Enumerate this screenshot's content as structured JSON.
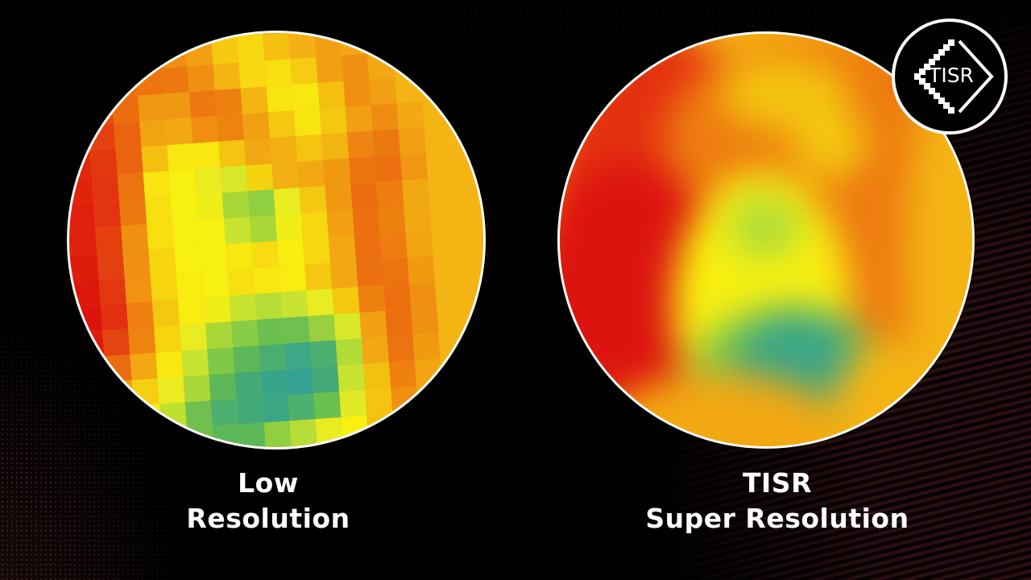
{
  "labels": {
    "left_line1": "Low",
    "left_line2": "Resolution",
    "right_line1": "TISR",
    "right_line2": "Super Resolution"
  },
  "logo": {
    "text": "TISR",
    "icon": "pixelated-diamond-arrow-icon"
  },
  "colors": {
    "background": "#000000",
    "circle_border": "#ffffff",
    "heat_red": "#e01c0c",
    "heat_orange": "#ee7c10",
    "heat_amber": "#f4b414",
    "heat_yellow": "#f8f010",
    "heat_lime": "#c8e830",
    "heat_green": "#6cc050",
    "heat_teal": "#30a090"
  },
  "lowres_grid": [
    [
      "#e85a10",
      "#e86010",
      "#ea6c10",
      "#ee8010",
      "#f08a12",
      "#f2a012",
      "#f0a812",
      "#f4c010",
      "#f6d010",
      "#f4b414",
      "#f2a814",
      "#f0a012",
      "#f0a012",
      "#f2b014",
      "#f4b414",
      "#f4b414",
      "#f4b414",
      "#f4b414"
    ],
    [
      "#e44810",
      "#e65210",
      "#ea6a10",
      "#ee7a12",
      "#ee7010",
      "#f09012",
      "#f2a012",
      "#f6c810",
      "#f8d810",
      "#f6c010",
      "#f4b014",
      "#f2a012",
      "#f2a814",
      "#f4b414",
      "#f4b414",
      "#f4b414",
      "#f4b414",
      "#f4b414"
    ],
    [
      "#e23810",
      "#e43e10",
      "#e85a10",
      "#ec7010",
      "#ee7410",
      "#ee7810",
      "#f09012",
      "#f4b412",
      "#f8d810",
      "#f8e010",
      "#f6cc10",
      "#f2a012",
      "#f09012",
      "#f2a814",
      "#f4b414",
      "#f4b414",
      "#f4b414",
      "#f4b414"
    ],
    [
      "#e22e0e",
      "#e2340e",
      "#e64e10",
      "#ec6c10",
      "#f09612",
      "#f09812",
      "#ee7810",
      "#ee8010",
      "#f4b412",
      "#f8e410",
      "#f8e810",
      "#f4c010",
      "#f09012",
      "#f0a012",
      "#f4b414",
      "#f4b414",
      "#f4b414",
      "#f4b414"
    ],
    [
      "#e0280c",
      "#e22c0e",
      "#e44010",
      "#ea6410",
      "#f0a412",
      "#f2a812",
      "#f08e12",
      "#ee8410",
      "#f0a012",
      "#f4c810",
      "#f8e410",
      "#f4c810",
      "#f0a012",
      "#ee8c12",
      "#f2a814",
      "#f4b414",
      "#f4b414",
      "#f4b414"
    ],
    [
      "#e0240c",
      "#e0280c",
      "#e23810",
      "#ea6410",
      "#f4c010",
      "#f8e810",
      "#f8e810",
      "#f4c410",
      "#f2a812",
      "#f2b012",
      "#f4c410",
      "#f2b412",
      "#ee8412",
      "#ec7810",
      "#f0a012",
      "#f4b414",
      "#f4b414",
      "#f4b414"
    ],
    [
      "#e0200c",
      "#e0240c",
      "#e23410",
      "#ec7410",
      "#f8e410",
      "#f8f010",
      "#e8ec20",
      "#d8e828",
      "#f4d410",
      "#f2b012",
      "#f2a812",
      "#f09812",
      "#ec7410",
      "#ec7010",
      "#f09612",
      "#f4b414",
      "#f4b414",
      "#f4b414"
    ],
    [
      "#de1c0c",
      "#e0200c",
      "#e23410",
      "#ec7810",
      "#f6e010",
      "#f8f010",
      "#f0ee18",
      "#a8d838",
      "#90d040",
      "#e8ec20",
      "#f4c810",
      "#f09812",
      "#ec6c10",
      "#ee7c10",
      "#f2a812",
      "#f4b414",
      "#f4b414",
      "#f4b414"
    ],
    [
      "#de1c0c",
      "#e0200c",
      "#e4400e",
      "#f09012",
      "#f8e010",
      "#f8f010",
      "#f8f010",
      "#c8e430",
      "#a8d838",
      "#f0ee18",
      "#f6d810",
      "#f2a012",
      "#ec7010",
      "#ee8010",
      "#f2a812",
      "#f4b414",
      "#f4b414",
      "#f4b414"
    ],
    [
      "#dc180c",
      "#de1c0c",
      "#e24010",
      "#f09012",
      "#f6d410",
      "#f8f010",
      "#f8f010",
      "#f8e810",
      "#f6dc10",
      "#f8ec10",
      "#f6d810",
      "#f2a812",
      "#ec7010",
      "#ee7c10",
      "#f2a412",
      "#f4b414",
      "#f4b414",
      "#f4b414"
    ],
    [
      "#dc140c",
      "#dc180c",
      "#e23810",
      "#f09212",
      "#f6d410",
      "#f8ec10",
      "#f8f010",
      "#f8e010",
      "#f8e810",
      "#f8ec10",
      "#f4c810",
      "#f2a812",
      "#ec7010",
      "#ec7410",
      "#f09a12",
      "#f4b414",
      "#f4b414",
      "#f4b414"
    ],
    [
      "#da120c",
      "#dc140c",
      "#e23010",
      "#ee8010",
      "#f4c810",
      "#f8ec10",
      "#f0ee18",
      "#c8e430",
      "#b8dc38",
      "#c8e430",
      "#e8ec20",
      "#f4c810",
      "#ee8010",
      "#ec7010",
      "#f09012",
      "#f4b414",
      "#f4b414",
      "#f4b414"
    ],
    [
      "#dc180c",
      "#de1c0c",
      "#e44410",
      "#ee8410",
      "#f6d410",
      "#e8ec20",
      "#a8d838",
      "#88cc48",
      "#6cc050",
      "#70c050",
      "#98d040",
      "#d8e828",
      "#f0a012",
      "#ec7010",
      "#f09012",
      "#f4b414",
      "#f4b414",
      "#f4b414"
    ],
    [
      "#e0300e",
      "#e24010",
      "#ea6c10",
      "#f2a812",
      "#f8e810",
      "#c8e430",
      "#80c848",
      "#5cb858",
      "#4aae70",
      "#3ca888",
      "#4cb070",
      "#b0dc38",
      "#f2a812",
      "#ec7410",
      "#f09a12",
      "#f4b414",
      "#f4b414",
      "#f4b414"
    ],
    [
      "#e65210",
      "#ec7410",
      "#f0a012",
      "#f6d010",
      "#e8ec20",
      "#a8d838",
      "#5cb858",
      "#42aa78",
      "#38a488",
      "#34a290",
      "#42aa78",
      "#c8e430",
      "#f4c010",
      "#ee8010",
      "#f2a412",
      "#f4b414",
      "#f4b414",
      "#f4b414"
    ],
    [
      "#ee8010",
      "#f2a012",
      "#f4c010",
      "#f0ee18",
      "#c0e030",
      "#70c050",
      "#4cb070",
      "#42aa78",
      "#3aa684",
      "#4cb070",
      "#6cc050",
      "#e0ea28",
      "#f4c410",
      "#f09012",
      "#f2a812",
      "#f4b414",
      "#f4b414",
      "#f4b414"
    ],
    [
      "#f2a812",
      "#f4c010",
      "#f4d410",
      "#e8ec20",
      "#a8d838",
      "#70c050",
      "#5cb858",
      "#5cb858",
      "#90d040",
      "#b8dc38",
      "#e8ec20",
      "#f8f010",
      "#f4c010",
      "#f2a812",
      "#f4b414",
      "#f4b414",
      "#f4b414",
      "#f4b414"
    ],
    [
      "#f4b414",
      "#f4c010",
      "#f4d410",
      "#f0ee18",
      "#c8e430",
      "#98d040",
      "#88cc48",
      "#a8d838",
      "#d0e430",
      "#f8f010",
      "#f8f010",
      "#f6d410",
      "#f4b414",
      "#f4b414",
      "#f4b414",
      "#f4b414",
      "#f4b414",
      "#f4b414"
    ]
  ]
}
